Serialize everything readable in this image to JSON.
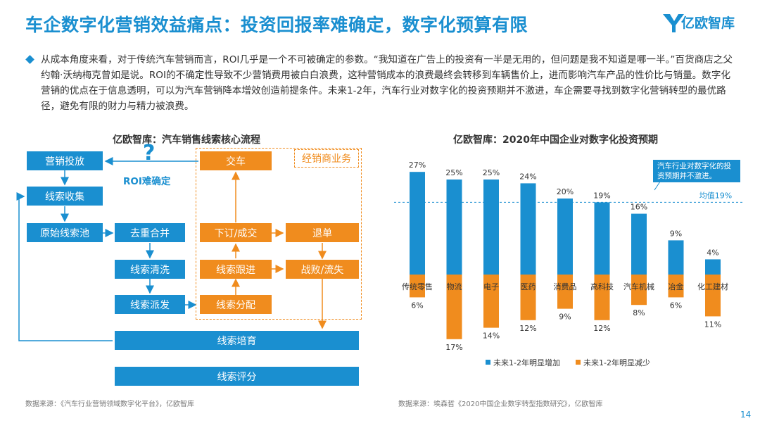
{
  "header": {
    "title": "车企数字化营销效益痛点：投资回报率难确定，数字化预算有限",
    "logo_text": "亿欧智库"
  },
  "intro": {
    "text": "从成本角度来看，对于传统汽车营销而言，ROI几乎是一个不可被确定的参数。“我知道在广告上的投资有一半是无用的，但问题是我不知道是哪一半。”百货商店之父约翰·沃纳梅克曾如是说。ROI的不确定性导致不少营销费用被白白浪费，这种营销成本的浪费最终会转移到车辆售价上，进而影响汽车产品的性价比与销量。数字化营销的优点在于信息透明，可以为汽车营销降本增效创造前提条件。未来1-2年，汽车行业对数字化的投资预期并不激进，车企需要寻找到数字化营销转型的最优路径，避免有限的财力与精力被浪费。"
  },
  "flow": {
    "title": "亿欧智库：汽车销售线索核心流程",
    "boxes": {
      "marketing": "营销投放",
      "collect": "线索收集",
      "pool": "原始线索池",
      "dedup": "去重合并",
      "clean": "线索清洗",
      "dispatch": "线索派发",
      "deliver": "交车",
      "order": "下订/成交",
      "refund": "退单",
      "follow": "线索跟进",
      "fail": "战败/流失",
      "assign": "线索分配",
      "nurture": "线索培育",
      "score": "线索评分"
    },
    "dealer_label": "经销商业务",
    "qmark": "?",
    "roi_label": "ROI难确定"
  },
  "chart_data": {
    "type": "bar",
    "title": "亿欧智库：2020年中国企业对数字化投资预期",
    "categories": [
      "传统零售",
      "物流",
      "电子",
      "医药",
      "消费品",
      "高科技",
      "汽车机械",
      "冶金",
      "化工建材"
    ],
    "series": [
      {
        "name": "未来1-2年明显增加",
        "values": [
          27,
          25,
          25,
          24,
          20,
          19,
          16,
          9,
          4
        ],
        "color": "#1a8fd0"
      },
      {
        "name": "未来1-2年明显减少",
        "values": [
          6,
          17,
          14,
          12,
          9,
          12,
          8,
          6,
          11
        ],
        "color": "#f08c1e"
      }
    ],
    "average": {
      "label": "均值19%",
      "value": 19
    },
    "note": "汽车行业对数字化的投资预期并不激进。",
    "value_suffix": "%"
  },
  "sources": {
    "left": "数据来源：《汽车行业营销领域数字化平台》，亿欧智库",
    "right": "数据来源：埃森哲《2020中国企业数字转型指数研究》，亿欧智库"
  },
  "page_number": "14"
}
